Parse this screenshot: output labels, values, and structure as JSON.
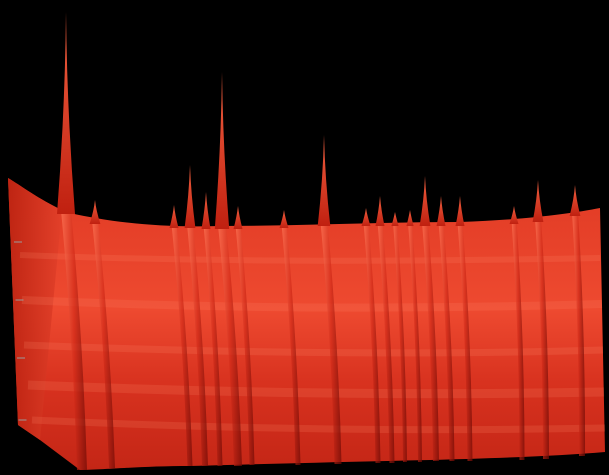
{
  "scene": {
    "description_kind": "3d-spectral-surface-render",
    "colors": {
      "background": "#000000",
      "surface_light": "#f0503a",
      "surface_mid": "#d8321f",
      "surface_dark": "#a9180e",
      "ridge_shadow": "#6e0a05",
      "ridge_highlight": "#ff7a5a",
      "axis_tick": "#9a9a9a"
    },
    "ridge_count": 22,
    "axis_tick_count": 4
  }
}
